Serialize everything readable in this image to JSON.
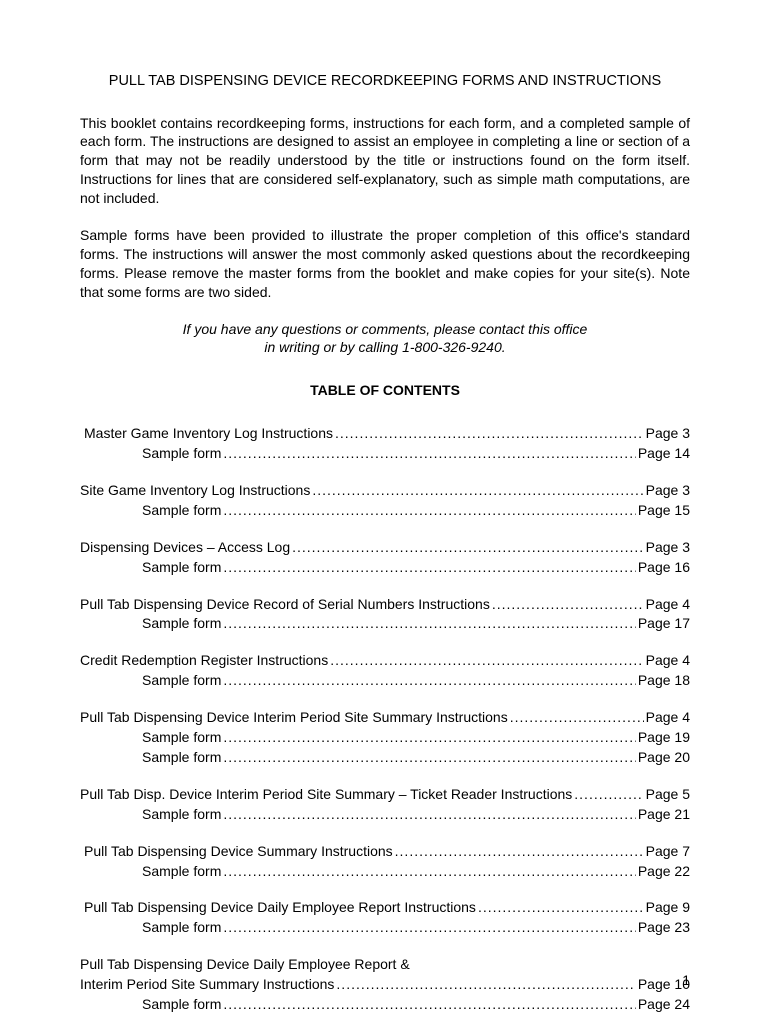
{
  "title": "PULL TAB DISPENSING DEVICE RECORDKEEPING FORMS AND INSTRUCTIONS",
  "para1": "This booklet contains recordkeeping forms, instructions for each form, and a completed sample of each form.  The instructions are designed to assist an employee in completing a line or section of a form that may not be readily understood by the title or instructions found on the form itself.  Instructions for lines that are considered self-explanatory, such as simple math computations, are not included.",
  "para2": "Sample forms have been provided to illustrate the proper completion of this office's standard forms.   The instructions will answer the most commonly asked questions about the recordkeeping forms.  Please remove the master forms from the booklet and make copies for your site(s). Note that some forms are two sided.",
  "contact1": "If you have any questions or comments, please contact this office",
  "contact2": "in writing or by calling 1-800-326-9240.",
  "tocHeader": "TABLE OF CONTENTS",
  "toc": [
    {
      "rows": [
        {
          "label": "Master Game Inventory Log Instructions",
          "page": "Page 3",
          "indent": "slight"
        },
        {
          "label": "Sample form",
          "page": "Page 14",
          "indent": "full"
        }
      ]
    },
    {
      "rows": [
        {
          "label": "Site Game Inventory Log Instructions",
          "page": "Page 3",
          "indent": "none"
        },
        {
          "label": "Sample form",
          "page": "Page 15",
          "indent": "full"
        }
      ]
    },
    {
      "rows": [
        {
          "label": "Dispensing Devices – Access Log",
          "page": "Page 3",
          "indent": "none"
        },
        {
          "label": "Sample form",
          "page": "Page 16",
          "indent": "full"
        }
      ]
    },
    {
      "rows": [
        {
          "label": "Pull Tab Dispensing Device Record of Serial Numbers Instructions",
          "page": "Page 4",
          "indent": "none"
        },
        {
          "label": "Sample form",
          "page": "Page 17",
          "indent": "full"
        }
      ]
    },
    {
      "rows": [
        {
          "label": "Credit Redemption Register Instructions",
          "page": "Page 4",
          "indent": "none"
        },
        {
          "label": "Sample form",
          "page": "Page 18",
          "indent": "full"
        }
      ]
    },
    {
      "rows": [
        {
          "label": "Pull Tab Dispensing Device Interim Period Site Summary Instructions",
          "page": "Page 4",
          "indent": "none"
        },
        {
          "label": "Sample form",
          "page": "Page 19",
          "indent": "full"
        },
        {
          "label": "Sample form",
          "page": "Page 20",
          "indent": "full"
        }
      ]
    },
    {
      "rows": [
        {
          "label": "Pull Tab Disp. Device Interim Period Site Summary – Ticket Reader Instructions",
          "page": "Page 5",
          "indent": "none"
        },
        {
          "label": "Sample form",
          "page": "Page 21",
          "indent": "full"
        }
      ]
    },
    {
      "rows": [
        {
          "label": "Pull Tab Dispensing Device Summary Instructions",
          "page": "Page 7",
          "indent": "slight"
        },
        {
          "label": "Sample form",
          "page": "Page 22",
          "indent": "full"
        }
      ]
    },
    {
      "rows": [
        {
          "label": "Pull Tab Dispensing Device Daily Employee Report Instructions",
          "page": "Page 9",
          "indent": "slight"
        },
        {
          "label": "Sample form",
          "page": "Page 23",
          "indent": "full"
        }
      ]
    },
    {
      "rows": [
        {
          "label": "Pull Tab Dispensing Device Daily Employee Report &",
          "page": "",
          "indent": "none",
          "nodots": true
        },
        {
          "label": "Interim Period Site Summary Instructions",
          "page": "Page 10",
          "indent": "none"
        },
        {
          "label": "Sample form",
          "page": "Page 24",
          "indent": "full"
        }
      ]
    }
  ],
  "pageNumber": "1"
}
